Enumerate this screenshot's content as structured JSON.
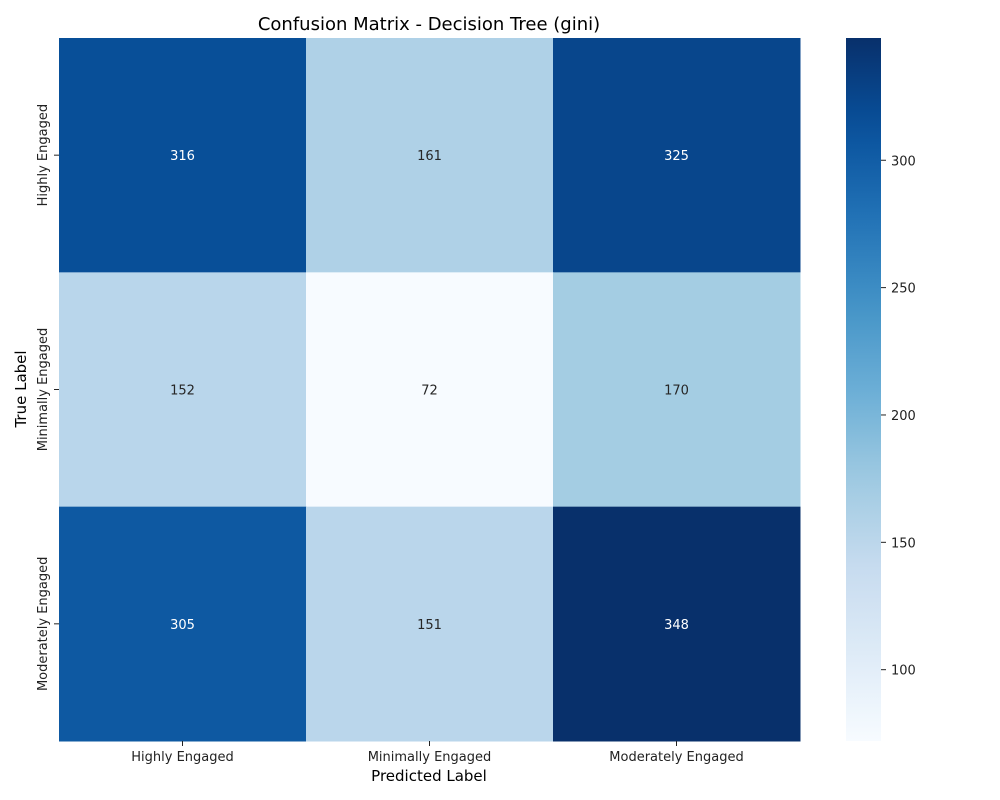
{
  "chart_data": {
    "type": "heatmap",
    "title": "Confusion Matrix - Decision Tree (gini)",
    "xlabel": "Predicted Label",
    "ylabel": "True Label",
    "x_categories": [
      "Highly Engaged",
      "Minimally Engaged",
      "Moderately Engaged"
    ],
    "y_categories": [
      "Highly Engaged",
      "Minimally Engaged",
      "Moderately Engaged"
    ],
    "values": [
      [
        316,
        161,
        325
      ],
      [
        152,
        72,
        170
      ],
      [
        305,
        151,
        348
      ]
    ],
    "colormap": "Blues",
    "colorbar": {
      "min": 72,
      "max": 348,
      "ticks": [
        100,
        150,
        200,
        250,
        300
      ]
    }
  }
}
